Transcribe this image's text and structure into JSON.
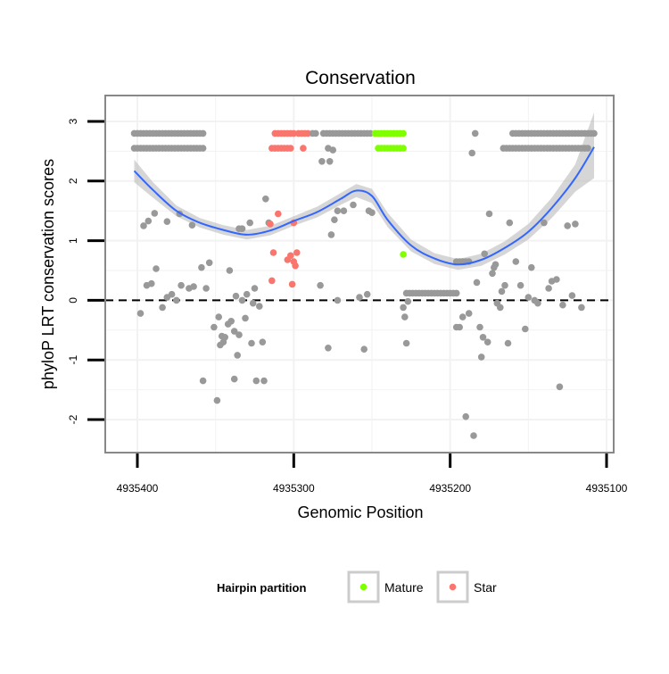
{
  "chart_data": {
    "type": "scatter",
    "title": "Conservation",
    "xlabel": "Genomic Position",
    "ylabel": "phyloP LRT conservation scores",
    "x_reversed": true,
    "xlim": [
      4935420,
      4935096
    ],
    "ylim": [
      -2.5,
      3.45
    ],
    "x_ticks": [
      4935400,
      4935300,
      4935200,
      4935100
    ],
    "x_tick_labels": [
      "4935400",
      "4935300",
      "4935200",
      "4935100"
    ],
    "y_ticks": [
      3,
      2,
      1,
      0,
      -1,
      -2
    ],
    "y_tick_labels": [
      "3",
      "2",
      "1",
      "0",
      "-1",
      "-2"
    ],
    "reference_line": {
      "y": 0,
      "style": "dashed"
    },
    "colors": {
      "other": "#999999",
      "mature": "#7fff00",
      "star": "#f8766d",
      "smooth_line": "#3366ff",
      "ribbon": "#bbbbbb",
      "panel_border": "#888888",
      "grid": "#f2f2f2"
    },
    "legend": {
      "title": "Hairpin partition",
      "position": "bottom",
      "items": [
        {
          "label": "Mature",
          "color": "#7fff00"
        },
        {
          "label": "Star",
          "color": "#f8766d"
        }
      ]
    },
    "smooth": {
      "x": [
        4935402,
        4935390,
        4935375,
        4935360,
        4935345,
        4935330,
        4935315,
        4935300,
        4935285,
        4935270,
        4935260,
        4935250,
        4935240,
        4935225,
        4935210,
        4935195,
        4935180,
        4935165,
        4935150,
        4935135,
        4935120,
        4935108
      ],
      "y": [
        2.17,
        1.85,
        1.5,
        1.3,
        1.18,
        1.1,
        1.17,
        1.33,
        1.48,
        1.7,
        1.84,
        1.75,
        1.35,
        0.92,
        0.7,
        0.6,
        0.68,
        0.88,
        1.15,
        1.55,
        2.05,
        2.57
      ],
      "lower": [
        1.98,
        1.72,
        1.41,
        1.22,
        1.1,
        1.02,
        1.09,
        1.25,
        1.39,
        1.6,
        1.73,
        1.63,
        1.23,
        0.82,
        0.61,
        0.51,
        0.58,
        0.77,
        1.02,
        1.38,
        1.82,
        2.05
      ],
      "upper": [
        2.36,
        1.98,
        1.59,
        1.38,
        1.26,
        1.18,
        1.25,
        1.41,
        1.57,
        1.8,
        1.95,
        1.87,
        1.47,
        1.02,
        0.79,
        0.69,
        0.78,
        0.99,
        1.28,
        1.72,
        2.28,
        3.15
      ]
    },
    "point_runs": [
      {
        "group": "other",
        "x_start": 4935402,
        "x_end": 4935358,
        "y": 2.8,
        "step": 2
      },
      {
        "group": "other",
        "x_start": 4935402,
        "x_end": 4935357,
        "y": 2.55,
        "step": 2
      },
      {
        "group": "star",
        "x_start": 4935312,
        "x_end": 4935300,
        "y": 2.8,
        "step": 2
      },
      {
        "group": "star",
        "x_start": 4935297,
        "x_end": 4935290,
        "y": 2.8,
        "step": 2
      },
      {
        "group": "other",
        "x_start": 4935288,
        "x_end": 4935285,
        "y": 2.8,
        "step": 2
      },
      {
        "group": "star",
        "x_start": 4935314,
        "x_end": 4935302,
        "y": 2.55,
        "step": 2
      },
      {
        "group": "other",
        "x_start": 4935281,
        "x_end": 4935250,
        "y": 2.8,
        "step": 2
      },
      {
        "group": "mature",
        "x_start": 4935248,
        "x_end": 4935230,
        "y": 2.8,
        "step": 2
      },
      {
        "group": "mature",
        "x_start": 4935246,
        "x_end": 4935230,
        "y": 2.55,
        "step": 2
      },
      {
        "group": "other",
        "x_start": 4935228,
        "x_end": 4935196,
        "y": 0.12,
        "step": 2
      },
      {
        "group": "other",
        "x_start": 4935196,
        "x_end": 4935188,
        "y": 0.65,
        "step": 2
      },
      {
        "group": "other",
        "x_start": 4935166,
        "x_end": 4935112,
        "y": 2.55,
        "step": 2
      },
      {
        "group": "other",
        "x_start": 4935160,
        "x_end": 4935108,
        "y": 2.8,
        "step": 2
      }
    ],
    "points": [
      {
        "group": "other",
        "x": 4935396,
        "y": 1.25
      },
      {
        "group": "other",
        "x": 4935393,
        "y": 1.33
      },
      {
        "group": "other",
        "x": 4935389,
        "y": 1.46
      },
      {
        "group": "other",
        "x": 4935381,
        "y": 1.32
      },
      {
        "group": "other",
        "x": 4935373,
        "y": 1.45
      },
      {
        "group": "other",
        "x": 4935365,
        "y": 1.26
      },
      {
        "group": "other",
        "x": 4935398,
        "y": -0.22
      },
      {
        "group": "other",
        "x": 4935394,
        "y": 0.25
      },
      {
        "group": "other",
        "x": 4935391,
        "y": 0.28
      },
      {
        "group": "other",
        "x": 4935388,
        "y": 0.53
      },
      {
        "group": "other",
        "x": 4935384,
        "y": -0.12
      },
      {
        "group": "other",
        "x": 4935381,
        "y": 0.05
      },
      {
        "group": "other",
        "x": 4935378,
        "y": 0.1
      },
      {
        "group": "other",
        "x": 4935375,
        "y": 0.0
      },
      {
        "group": "other",
        "x": 4935372,
        "y": 0.25
      },
      {
        "group": "other",
        "x": 4935367,
        "y": 0.2
      },
      {
        "group": "other",
        "x": 4935364,
        "y": 0.23
      },
      {
        "group": "other",
        "x": 4935359,
        "y": 0.55
      },
      {
        "group": "other",
        "x": 4935356,
        "y": 0.2
      },
      {
        "group": "other",
        "x": 4935354,
        "y": 0.63
      },
      {
        "group": "other",
        "x": 4935351,
        "y": -0.45
      },
      {
        "group": "other",
        "x": 4935348,
        "y": -0.28
      },
      {
        "group": "other",
        "x": 4935346,
        "y": -0.6
      },
      {
        "group": "other",
        "x": 4935345,
        "y": -0.7
      },
      {
        "group": "other",
        "x": 4935344,
        "y": -0.62
      },
      {
        "group": "other",
        "x": 4935342,
        "y": -0.4
      },
      {
        "group": "other",
        "x": 4935341,
        "y": 0.5
      },
      {
        "group": "other",
        "x": 4935340,
        "y": -0.35
      },
      {
        "group": "other",
        "x": 4935338,
        "y": -0.52
      },
      {
        "group": "other",
        "x": 4935337,
        "y": 0.07
      },
      {
        "group": "other",
        "x": 4935336,
        "y": -0.92
      },
      {
        "group": "other",
        "x": 4935335,
        "y": -0.58
      },
      {
        "group": "other",
        "x": 4935333,
        "y": 0.0
      },
      {
        "group": "other",
        "x": 4935331,
        "y": -0.3
      },
      {
        "group": "other",
        "x": 4935330,
        "y": 0.1
      },
      {
        "group": "other",
        "x": 4935328,
        "y": 1.3
      },
      {
        "group": "other",
        "x": 4935327,
        "y": -0.72
      },
      {
        "group": "other",
        "x": 4935326,
        "y": -0.05
      },
      {
        "group": "other",
        "x": 4935325,
        "y": 0.2
      },
      {
        "group": "other",
        "x": 4935324,
        "y": -1.35
      },
      {
        "group": "other",
        "x": 4935322,
        "y": -0.1
      },
      {
        "group": "other",
        "x": 4935320,
        "y": -0.7
      },
      {
        "group": "other",
        "x": 4935319,
        "y": -1.35
      },
      {
        "group": "other",
        "x": 4935318,
        "y": 1.7
      },
      {
        "group": "other",
        "x": 4935316,
        "y": 1.3
      },
      {
        "group": "other",
        "x": 4935349,
        "y": -1.68
      },
      {
        "group": "other",
        "x": 4935358,
        "y": -1.35
      },
      {
        "group": "other",
        "x": 4935338,
        "y": -1.32
      },
      {
        "group": "other",
        "x": 4935347,
        "y": -0.75
      },
      {
        "group": "other",
        "x": 4935335,
        "y": 1.2
      },
      {
        "group": "other",
        "x": 4935333,
        "y": 1.2
      },
      {
        "group": "other",
        "x": 4935278,
        "y": 2.55
      },
      {
        "group": "other",
        "x": 4935275,
        "y": 2.52
      },
      {
        "group": "other",
        "x": 4935277,
        "y": 2.33
      },
      {
        "group": "other",
        "x": 4935272,
        "y": 1.5
      },
      {
        "group": "other",
        "x": 4935274,
        "y": 1.35
      },
      {
        "group": "other",
        "x": 4935276,
        "y": 1.1
      },
      {
        "group": "other",
        "x": 4935268,
        "y": 1.5
      },
      {
        "group": "other",
        "x": 4935262,
        "y": 1.6
      },
      {
        "group": "other",
        "x": 4935258,
        "y": 0.05
      },
      {
        "group": "other",
        "x": 4935255,
        "y": -0.82
      },
      {
        "group": "other",
        "x": 4935253,
        "y": 0.1
      },
      {
        "group": "other",
        "x": 4935252,
        "y": 1.5
      },
      {
        "group": "other",
        "x": 4935250,
        "y": 1.47
      },
      {
        "group": "other",
        "x": 4935272,
        "y": 0.0
      },
      {
        "group": "other",
        "x": 4935278,
        "y": -0.8
      },
      {
        "group": "other",
        "x": 4935282,
        "y": 2.33
      },
      {
        "group": "other",
        "x": 4935283,
        "y": 0.25
      },
      {
        "group": "other",
        "x": 4935230,
        "y": -0.12
      },
      {
        "group": "other",
        "x": 4935229,
        "y": -0.28
      },
      {
        "group": "other",
        "x": 4935228,
        "y": -0.72
      },
      {
        "group": "other",
        "x": 4935227,
        "y": -0.02
      },
      {
        "group": "other",
        "x": 4935196,
        "y": -0.45
      },
      {
        "group": "other",
        "x": 4935194,
        "y": -0.45
      },
      {
        "group": "other",
        "x": 4935192,
        "y": -0.28
      },
      {
        "group": "other",
        "x": 4935190,
        "y": -1.95
      },
      {
        "group": "other",
        "x": 4935188,
        "y": -0.22
      },
      {
        "group": "other",
        "x": 4935186,
        "y": 2.47
      },
      {
        "group": "other",
        "x": 4935185,
        "y": -2.27
      },
      {
        "group": "other",
        "x": 4935184,
        "y": 2.8
      },
      {
        "group": "other",
        "x": 4935183,
        "y": 0.3
      },
      {
        "group": "other",
        "x": 4935181,
        "y": -0.45
      },
      {
        "group": "other",
        "x": 4935180,
        "y": -0.95
      },
      {
        "group": "other",
        "x": 4935179,
        "y": -0.62
      },
      {
        "group": "other",
        "x": 4935178,
        "y": 0.78
      },
      {
        "group": "other",
        "x": 4935176,
        "y": -0.7
      },
      {
        "group": "other",
        "x": 4935175,
        "y": 1.45
      },
      {
        "group": "other",
        "x": 4935173,
        "y": 0.45
      },
      {
        "group": "other",
        "x": 4935172,
        "y": 0.55
      },
      {
        "group": "other",
        "x": 4935171,
        "y": 0.6
      },
      {
        "group": "other",
        "x": 4935170,
        "y": -0.05
      },
      {
        "group": "other",
        "x": 4935168,
        "y": -0.12
      },
      {
        "group": "other",
        "x": 4935167,
        "y": 0.15
      },
      {
        "group": "other",
        "x": 4935165,
        "y": 0.25
      },
      {
        "group": "other",
        "x": 4935163,
        "y": -0.72
      },
      {
        "group": "other",
        "x": 4935162,
        "y": 1.3
      },
      {
        "group": "other",
        "x": 4935158,
        "y": 0.65
      },
      {
        "group": "other",
        "x": 4935155,
        "y": 0.25
      },
      {
        "group": "other",
        "x": 4935152,
        "y": -0.48
      },
      {
        "group": "other",
        "x": 4935150,
        "y": 0.05
      },
      {
        "group": "other",
        "x": 4935148,
        "y": 0.55
      },
      {
        "group": "other",
        "x": 4935146,
        "y": 0.0
      },
      {
        "group": "other",
        "x": 4935144,
        "y": -0.05
      },
      {
        "group": "other",
        "x": 4935140,
        "y": 1.3
      },
      {
        "group": "other",
        "x": 4935137,
        "y": 0.2
      },
      {
        "group": "other",
        "x": 4935135,
        "y": 0.32
      },
      {
        "group": "other",
        "x": 4935132,
        "y": 0.35
      },
      {
        "group": "other",
        "x": 4935130,
        "y": -1.45
      },
      {
        "group": "other",
        "x": 4935128,
        "y": -0.08
      },
      {
        "group": "other",
        "x": 4935125,
        "y": 1.25
      },
      {
        "group": "other",
        "x": 4935122,
        "y": 0.08
      },
      {
        "group": "other",
        "x": 4935120,
        "y": 1.28
      },
      {
        "group": "other",
        "x": 4935116,
        "y": -0.12
      },
      {
        "group": "star",
        "x": 4935315,
        "y": 1.28
      },
      {
        "group": "star",
        "x": 4935313,
        "y": 0.8
      },
      {
        "group": "star",
        "x": 4935310,
        "y": 1.45
      },
      {
        "group": "star",
        "x": 4935314,
        "y": 0.33
      },
      {
        "group": "star",
        "x": 4935304,
        "y": 0.68
      },
      {
        "group": "star",
        "x": 4935302,
        "y": 0.75
      },
      {
        "group": "star",
        "x": 4935300,
        "y": 0.65
      },
      {
        "group": "star",
        "x": 4935299,
        "y": 0.58
      },
      {
        "group": "star",
        "x": 4935298,
        "y": 0.8
      },
      {
        "group": "star",
        "x": 4935301,
        "y": 0.27
      },
      {
        "group": "star",
        "x": 4935300,
        "y": 1.3
      },
      {
        "group": "star",
        "x": 4935294,
        "y": 2.55
      },
      {
        "group": "mature",
        "x": 4935230,
        "y": 0.77
      }
    ]
  }
}
